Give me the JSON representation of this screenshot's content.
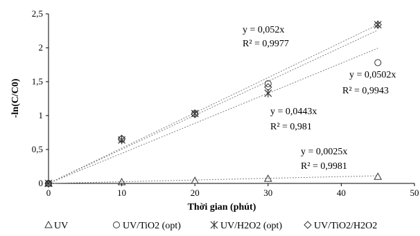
{
  "chart_data": {
    "type": "scatter",
    "xlabel": "Thời gian (phút)",
    "ylabel": "-ln(C/C0)",
    "xlim": [
      0,
      50
    ],
    "ylim": [
      0,
      2.5
    ],
    "x_ticks": [
      "0",
      "10",
      "20",
      "30",
      "40",
      "50"
    ],
    "y_ticks": [
      "0",
      "0,5",
      "1",
      "1,5",
      "2",
      "2,5"
    ],
    "grid": false,
    "legend_position": "bottom",
    "series": [
      {
        "name": "UV",
        "marker": "triangle",
        "x": [
          0,
          10,
          20,
          30,
          45
        ],
        "y": [
          0,
          0.02,
          0.04,
          0.07,
          0.1
        ]
      },
      {
        "name": "UV/TiO2 (opt)",
        "marker": "circle",
        "x": [
          0,
          10,
          20,
          30,
          45
        ],
        "y": [
          0,
          0.65,
          1.03,
          1.47,
          1.78
        ]
      },
      {
        "name": "UV/H2O2 (opt)",
        "marker": "asterisk",
        "x": [
          0,
          10,
          20,
          30,
          45
        ],
        "y": [
          0,
          0.64,
          1.03,
          1.33,
          2.34
        ]
      },
      {
        "name": "UV/TiO2/H2O2",
        "marker": "diamond",
        "x": [
          0,
          10,
          20,
          30,
          45
        ],
        "y": [
          0,
          0.66,
          1.02,
          1.42,
          2.34
        ]
      }
    ],
    "trendlines": [
      {
        "slope": 0.052,
        "equation": "y = 0,052x",
        "r2": "R² = 0,9977"
      },
      {
        "slope": 0.0502,
        "equation": "y = 0,0502x",
        "r2": "R² = 0,9943"
      },
      {
        "slope": 0.0443,
        "equation": "y = 0,0443x",
        "r2": "R² = 0,981"
      },
      {
        "slope": 0.0025,
        "equation": "y = 0,0025x",
        "r2": "R² = 0,9981"
      }
    ]
  },
  "legend": [
    {
      "marker": "triangle",
      "label": "UV"
    },
    {
      "marker": "circle",
      "label": "UV/TiO2 (opt)"
    },
    {
      "marker": "asterisk",
      "label": "UV/H2O2  (opt)"
    },
    {
      "marker": "diamond",
      "label": "UV/TiO2/H2O2"
    }
  ]
}
